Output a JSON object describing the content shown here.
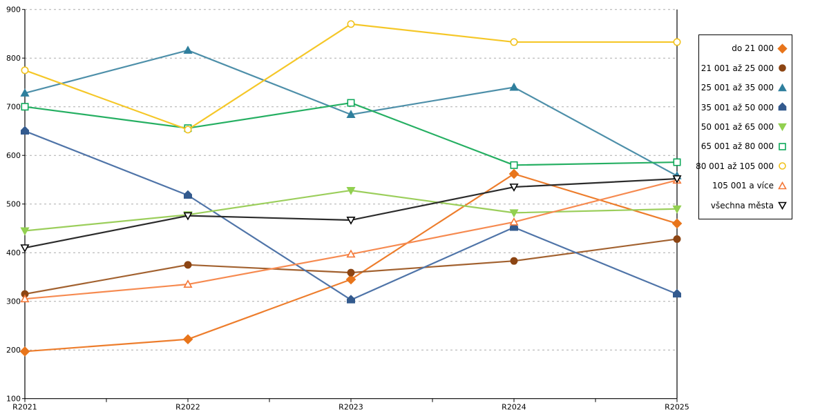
{
  "chart_data": {
    "type": "line",
    "title": "",
    "xlabel": "",
    "ylabel": "",
    "categories": [
      "R2021",
      "R2022",
      "R2023",
      "R2024",
      "R2025"
    ],
    "y_axis": {
      "min": 100,
      "max": 900,
      "step": 100
    },
    "y_tick_labels": [
      "100",
      "200",
      "300",
      "400",
      "500",
      "600",
      "700",
      "800",
      "900"
    ],
    "grid": "horizontal-dashed",
    "grid_color": "#aaaaaa",
    "axis_color": "#000000",
    "legend_position": "right",
    "series": [
      {
        "name": "do 21 000",
        "marker": "diamond",
        "fill": "filled",
        "color": "#e8751b",
        "line_color": "#ed7d2c",
        "values": [
          197,
          222,
          345,
          562,
          460
        ]
      },
      {
        "name": "21 001 až 25 000",
        "marker": "circle",
        "fill": "filled",
        "color": "#8c4513",
        "line_color": "#a2612f",
        "values": [
          315,
          375,
          359,
          383,
          428
        ]
      },
      {
        "name": "25 001 až 35 000",
        "marker": "triangle-up",
        "fill": "filled",
        "color": "#2f7f9d",
        "line_color": "#4d8fa9",
        "values": [
          728,
          816,
          684,
          740,
          558
        ]
      },
      {
        "name": "35 001 až 50 000",
        "marker": "pentagon",
        "fill": "filled",
        "color": "#335a8e",
        "line_color": "#4f74a8",
        "values": [
          650,
          518,
          303,
          452,
          315
        ]
      },
      {
        "name": "50 001 až 65 000",
        "marker": "triangle-down",
        "fill": "filled",
        "color": "#92d050",
        "line_color": "#9bce5b",
        "values": [
          445,
          478,
          528,
          482,
          490
        ]
      },
      {
        "name": "65 001 až 80 000",
        "marker": "square",
        "fill": "open",
        "color": "#0ea85a",
        "line_color": "#25af62",
        "values": [
          700,
          656,
          708,
          580,
          586
        ]
      },
      {
        "name": "80 001 až 105 000",
        "marker": "circle",
        "fill": "open",
        "color": "#f1c21c",
        "line_color": "#f5c728",
        "values": [
          775,
          653,
          870,
          833,
          833
        ]
      },
      {
        "name": "105 001 a více",
        "marker": "triangle-up",
        "fill": "open",
        "color": "#f47636",
        "line_color": "#f68a50",
        "values": [
          305,
          335,
          397,
          463,
          549
        ]
      },
      {
        "name": "všechna města",
        "marker": "triangle-down",
        "fill": "open",
        "color": "#000000",
        "line_color": "#2b2b2b",
        "values": [
          410,
          476,
          467,
          535,
          552
        ]
      }
    ]
  }
}
